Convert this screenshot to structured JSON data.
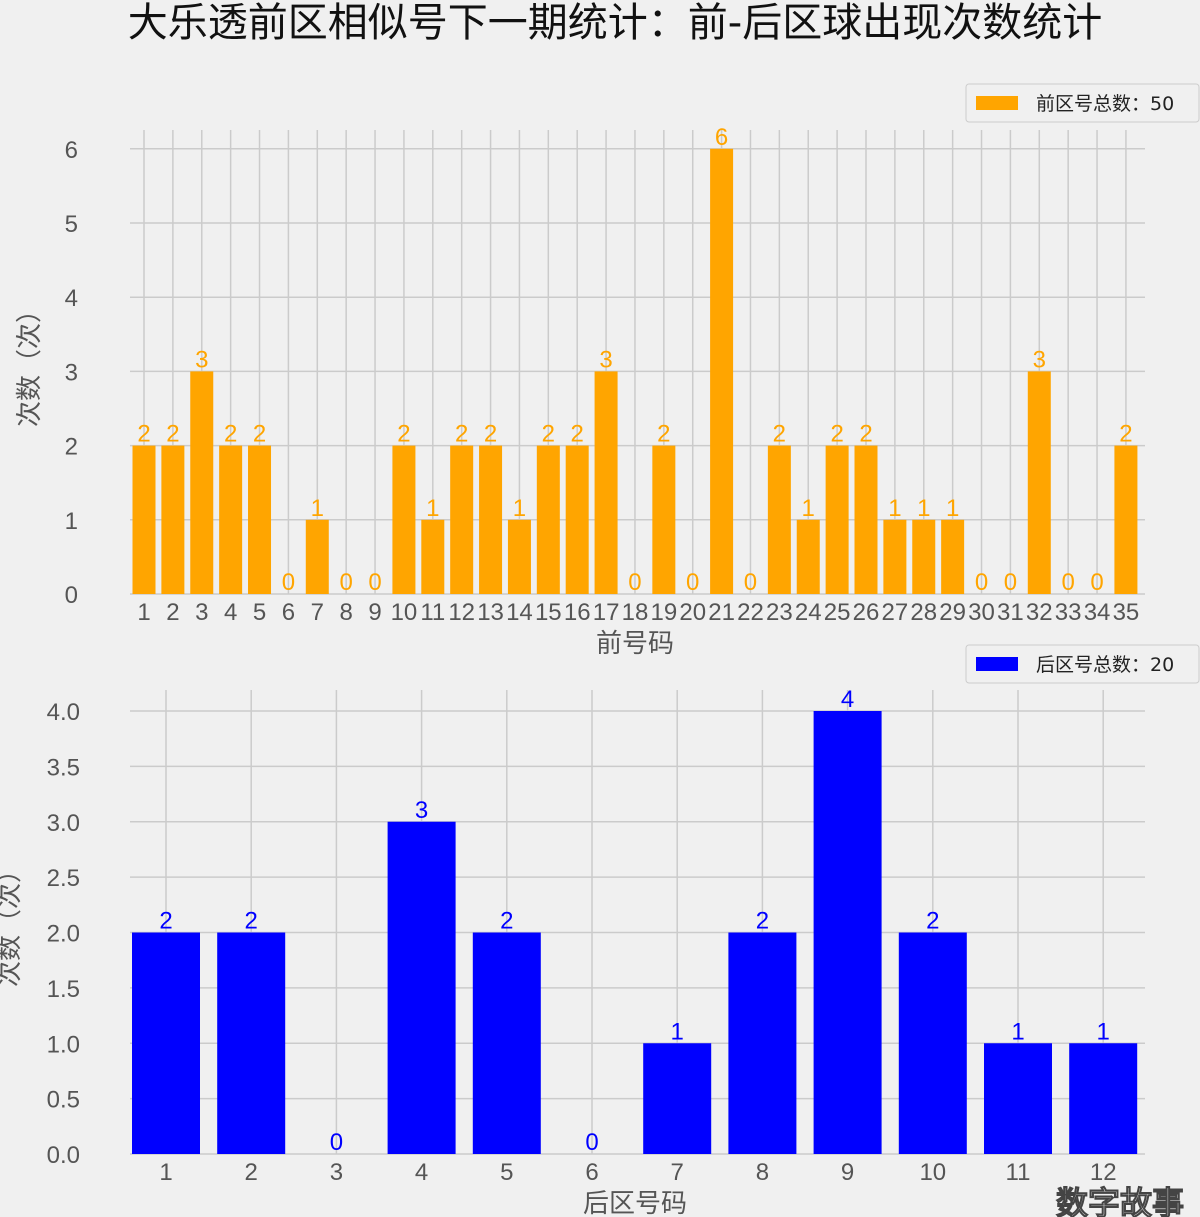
{
  "title": "大乐透前区相似号下一期统计：前-后区球出现次数统计",
  "watermark": "数字故事",
  "chart_data": [
    {
      "type": "bar",
      "title": "大乐透前区相似号下一期统计：前-后区球出现次数统计",
      "xlabel": "前号码",
      "ylabel": "次数（次）",
      "color": "#FFA500",
      "legend": "前区号总数：50",
      "legend_position": "top-right",
      "grid": true,
      "ylim": [
        0,
        6.3
      ],
      "yticks": [
        "0",
        "1",
        "2",
        "3",
        "4",
        "5",
        "6"
      ],
      "ytick_values": [
        0,
        1,
        2,
        3,
        4,
        5,
        6
      ],
      "categories": [
        "1",
        "2",
        "3",
        "4",
        "5",
        "6",
        "7",
        "8",
        "9",
        "10",
        "11",
        "12",
        "13",
        "14",
        "15",
        "16",
        "17",
        "18",
        "19",
        "20",
        "21",
        "22",
        "23",
        "24",
        "25",
        "26",
        "27",
        "28",
        "29",
        "30",
        "31",
        "32",
        "33",
        "34",
        "35"
      ],
      "values": [
        2,
        2,
        3,
        2,
        2,
        0,
        1,
        0,
        0,
        2,
        1,
        2,
        2,
        1,
        2,
        2,
        3,
        0,
        2,
        0,
        6,
        0,
        2,
        1,
        2,
        2,
        1,
        1,
        1,
        0,
        0,
        3,
        0,
        0,
        2
      ]
    },
    {
      "type": "bar",
      "xlabel": "后区号码",
      "ylabel": "次数（次）",
      "color": "#0000FF",
      "legend": "后区号总数：20",
      "legend_position": "top-right",
      "grid": true,
      "ylim": [
        0,
        4.2
      ],
      "yticks": [
        "0.0",
        "0.5",
        "1.0",
        "1.5",
        "2.0",
        "2.5",
        "3.0",
        "3.5",
        "4.0"
      ],
      "ytick_values": [
        0,
        0.5,
        1,
        1.5,
        2,
        2.5,
        3,
        3.5,
        4
      ],
      "categories": [
        "1",
        "2",
        "3",
        "4",
        "5",
        "6",
        "7",
        "8",
        "9",
        "10",
        "11",
        "12"
      ],
      "values": [
        2,
        2,
        0,
        3,
        2,
        0,
        1,
        2,
        4,
        2,
        1,
        1
      ]
    }
  ]
}
